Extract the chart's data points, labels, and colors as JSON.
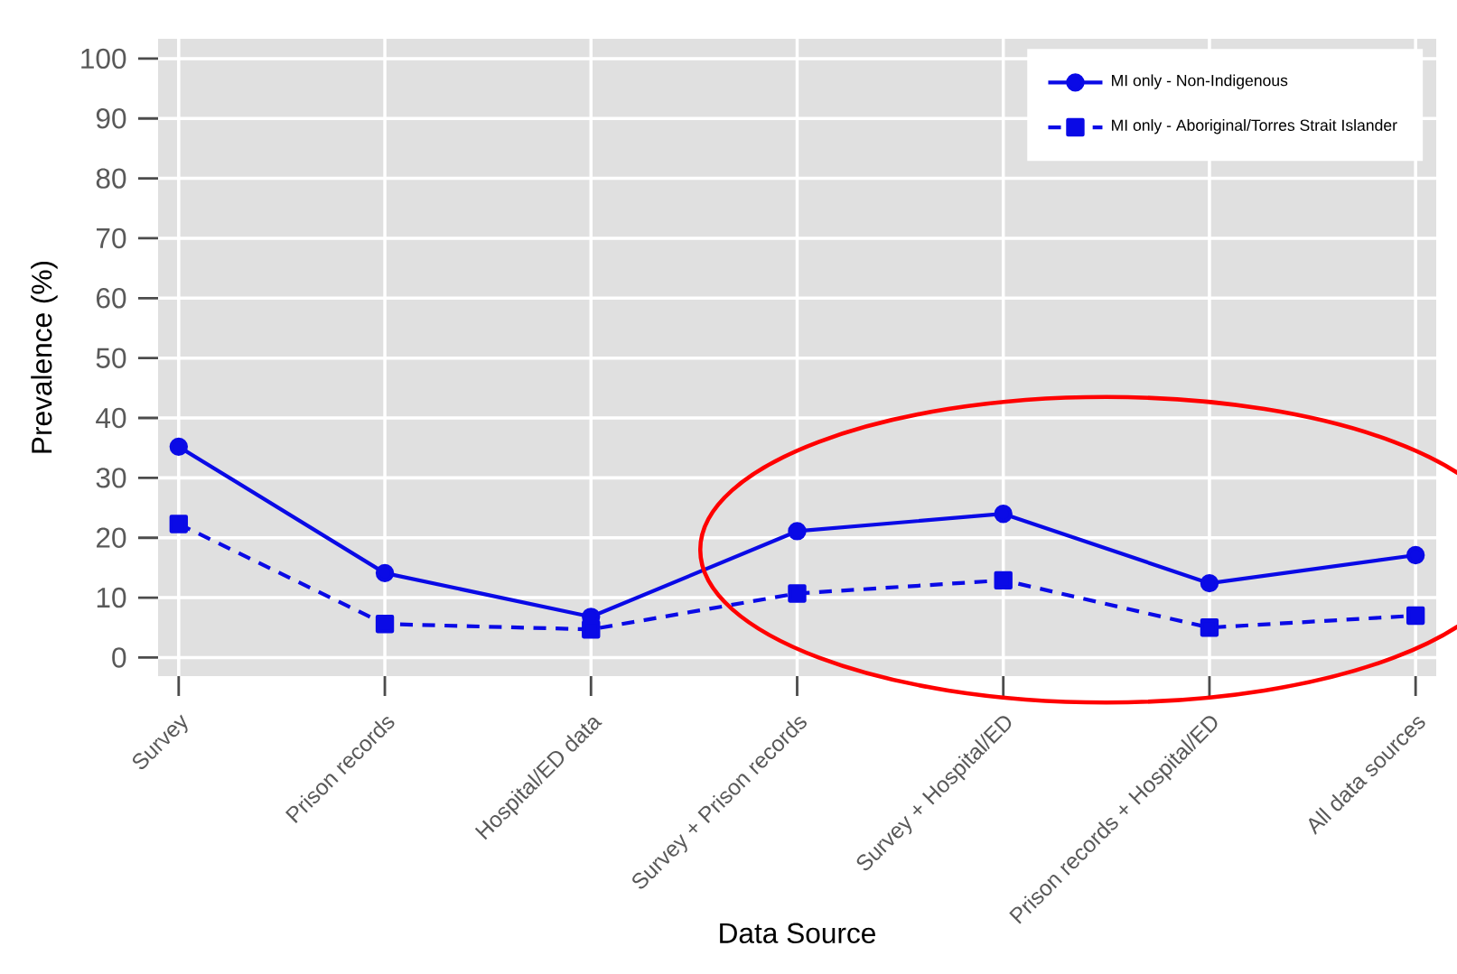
{
  "chart_data": {
    "type": "line",
    "xlabel": "Data Source",
    "ylabel": "Prevalence (%)",
    "categories": [
      "Survey",
      "Prison records",
      "Hospital/ED data",
      "Survey + Prison records",
      "Survey + Hospital/ED",
      "Prison records + Hospital/ED",
      "All data sources"
    ],
    "series": [
      {
        "name": "MI only - Non-Indigenous",
        "color": "#0a0ae6",
        "marker": "circle",
        "line_style": "solid",
        "values": [
          35.2,
          14.1,
          6.8,
          21.1,
          24.0,
          12.4,
          17.1
        ]
      },
      {
        "name": "MI only - Aboriginal/Torres Strait Islander",
        "color": "#0a0ae6",
        "marker": "square",
        "line_style": "dashed",
        "values": [
          22.3,
          5.6,
          4.7,
          10.7,
          12.9,
          5.0,
          7.0
        ]
      }
    ],
    "ylim": [
      -3.1,
      103.3
    ],
    "yticks": [
      0,
      10,
      20,
      30,
      40,
      50,
      60,
      70,
      80,
      90,
      100
    ],
    "grid": true,
    "legend": "top right"
  }
}
